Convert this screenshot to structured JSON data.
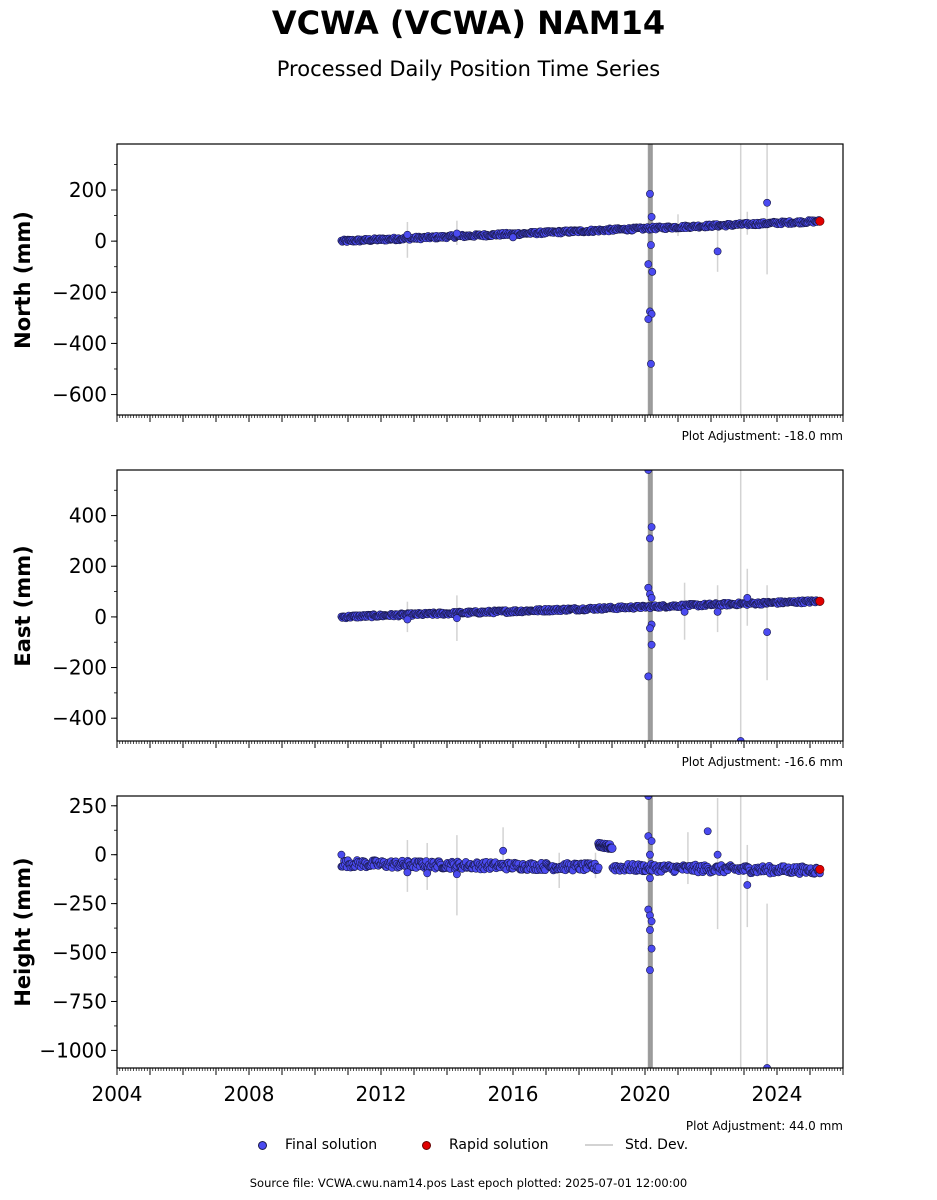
{
  "title": "VCWA (VCWA) NAM14",
  "subtitle": "Processed Daily Position Time Series",
  "legend": {
    "final": "Final solution",
    "rapid": "Rapid solution",
    "std": "Std. Dev."
  },
  "footer": "Source file: VCWA.cwu.nam14.pos  Last epoch plotted: 2025-07-01 12:00:00",
  "colors": {
    "final": "#4a4af0",
    "rapid": "#e00000",
    "stddev": "#d3d3d3",
    "edge": "#1a1a4a"
  },
  "chart_data": [
    {
      "type": "scatter",
      "ylabel": "North (mm)",
      "xlim": [
        2004.0,
        2026.0
      ],
      "ylim": [
        -680,
        380
      ],
      "yticks": [
        200,
        0,
        -200,
        -400,
        -600
      ],
      "ytick_labels": [
        "200",
        "0",
        "−200",
        "−400",
        "−600"
      ],
      "adjustment": "Plot Adjustment: -18.0 mm",
      "trend": {
        "x": [
          2010.8,
          2025.3
        ],
        "y": [
          0,
          78
        ]
      },
      "outliers": [
        [
          2020.15,
          185
        ],
        [
          2020.2,
          95
        ],
        [
          2020.18,
          -15
        ],
        [
          2020.1,
          -90
        ],
        [
          2020.22,
          -120
        ],
        [
          2020.15,
          -275
        ],
        [
          2020.2,
          -285
        ],
        [
          2020.1,
          -305
        ],
        [
          2020.18,
          -480
        ],
        [
          2022.2,
          -40
        ],
        [
          2023.7,
          150
        ],
        [
          2014.3,
          30
        ],
        [
          2012.8,
          25
        ],
        [
          2016.0,
          15
        ]
      ],
      "errorbars": [
        [
          2012.8,
          -65,
          75
        ],
        [
          2014.3,
          -15,
          80
        ],
        [
          2021.0,
          20,
          105
        ],
        [
          2022.2,
          -120,
          75
        ],
        [
          2022.9,
          -680,
          380
        ],
        [
          2023.1,
          25,
          115
        ],
        [
          2023.7,
          -130,
          380
        ]
      ],
      "rapid": [
        [
          2025.3,
          78
        ]
      ]
    },
    {
      "type": "scatter",
      "ylabel": "East (mm)",
      "xlim": [
        2004.0,
        2026.0
      ],
      "ylim": [
        -490,
        580
      ],
      "yticks": [
        400,
        200,
        0,
        -200,
        -400
      ],
      "ytick_labels": [
        "400",
        "200",
        "0",
        "−200",
        "−400"
      ],
      "adjustment": "Plot Adjustment: -16.6 mm",
      "trend": {
        "x": [
          2010.8,
          2025.3
        ],
        "y": [
          0,
          62
        ]
      },
      "outliers": [
        [
          2020.1,
          580
        ],
        [
          2020.2,
          355
        ],
        [
          2020.15,
          310
        ],
        [
          2020.1,
          115
        ],
        [
          2020.15,
          90
        ],
        [
          2020.2,
          75
        ],
        [
          2020.2,
          -30
        ],
        [
          2020.15,
          -45
        ],
        [
          2020.2,
          -110
        ],
        [
          2020.1,
          -235
        ],
        [
          2021.2,
          20
        ],
        [
          2022.2,
          20
        ],
        [
          2023.1,
          75
        ],
        [
          2023.7,
          -60
        ],
        [
          2014.3,
          -5
        ],
        [
          2012.8,
          -10
        ],
        [
          2022.9,
          -490
        ]
      ],
      "errorbars": [
        [
          2012.8,
          -60,
          60
        ],
        [
          2014.3,
          -95,
          85
        ],
        [
          2021.2,
          -90,
          135
        ],
        [
          2022.2,
          -60,
          125
        ],
        [
          2022.9,
          -490,
          580
        ],
        [
          2023.1,
          -35,
          190
        ],
        [
          2023.7,
          -250,
          125
        ]
      ],
      "rapid": [
        [
          2025.3,
          62
        ]
      ]
    },
    {
      "type": "scatter",
      "ylabel": "Height (mm)",
      "xlim": [
        2004.0,
        2026.0
      ],
      "ylim": [
        -1090,
        300
      ],
      "yticks": [
        250,
        0,
        -250,
        -500,
        -750,
        -1000
      ],
      "ytick_labels": [
        "250",
        "0",
        "−250",
        "−500",
        "−750",
        "−1000"
      ],
      "adjustment": "Plot Adjustment: 44.0 mm",
      "xticks": [
        2004,
        2008,
        2012,
        2016,
        2020,
        2024
      ],
      "xtick_labels": [
        "2004",
        "2008",
        "2012",
        "2016",
        "2020",
        "2024"
      ],
      "trend": {
        "x": [
          2010.8,
          2025.3
        ],
        "y": [
          -45,
          -80
        ]
      },
      "gap": [
        2018.6,
        2019.0
      ],
      "cluster": {
        "x": [
          2018.6,
          2019.0
        ],
        "y": [
          50,
          40
        ]
      },
      "outliers": [
        [
          2020.1,
          300
        ],
        [
          2020.1,
          95
        ],
        [
          2020.2,
          70
        ],
        [
          2020.15,
          0
        ],
        [
          2020.15,
          -120
        ],
        [
          2020.1,
          -280
        ],
        [
          2020.15,
          -310
        ],
        [
          2020.2,
          -340
        ],
        [
          2020.15,
          -385
        ],
        [
          2020.2,
          -480
        ],
        [
          2020.15,
          -590
        ],
        [
          2021.9,
          120
        ],
        [
          2022.2,
          0
        ],
        [
          2023.1,
          -155
        ],
        [
          2023.7,
          -1090
        ],
        [
          2015.7,
          20
        ],
        [
          2012.8,
          -90
        ],
        [
          2013.4,
          -95
        ],
        [
          2014.3,
          -100
        ],
        [
          2010.8,
          0
        ]
      ],
      "errorbars": [
        [
          2012.8,
          -190,
          75
        ],
        [
          2013.4,
          -180,
          60
        ],
        [
          2014.3,
          -310,
          100
        ],
        [
          2015.7,
          -60,
          140
        ],
        [
          2017.4,
          -170,
          10
        ],
        [
          2018.5,
          -120,
          10
        ],
        [
          2021.3,
          -150,
          115
        ],
        [
          2022.2,
          -380,
          290
        ],
        [
          2022.9,
          -1090,
          300
        ],
        [
          2023.1,
          -370,
          50
        ],
        [
          2023.7,
          -1090,
          -250
        ]
      ],
      "rapid": [
        [
          2025.3,
          -75
        ]
      ]
    }
  ]
}
